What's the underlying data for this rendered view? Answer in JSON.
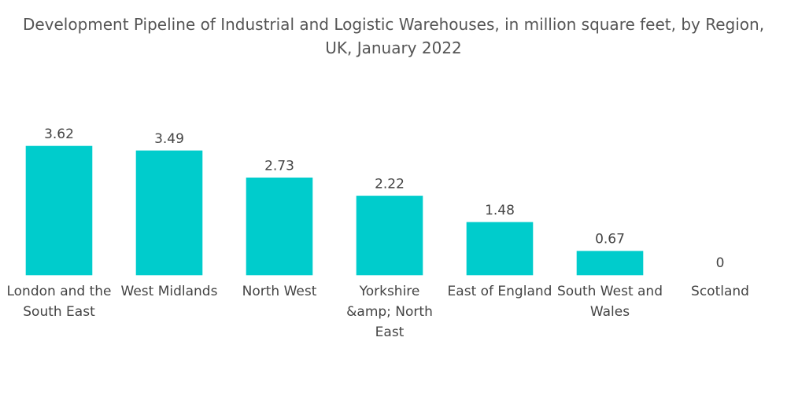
{
  "chart_data": {
    "type": "bar",
    "title": "Development Pipeline of Industrial and Logistic Warehouses, in million square feet, by Region, UK, January 2022",
    "categories": [
      "London and the South East",
      "West Midlands",
      "North West",
      "Yorkshire &amp; North East",
      "East of England",
      "South West and Wales",
      "Scotland"
    ],
    "values": [
      3.62,
      3.49,
      2.73,
      2.22,
      1.48,
      0.67,
      0
    ],
    "color": "#00cccc"
  }
}
